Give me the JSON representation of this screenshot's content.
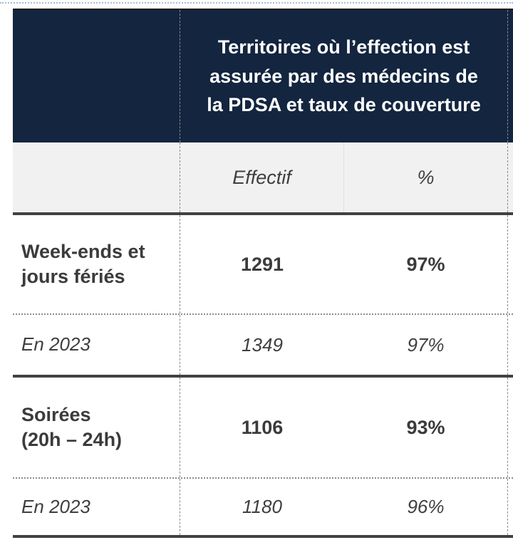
{
  "colors": {
    "header_bg": "#13253f",
    "header_text": "#ffffff",
    "subheader_bg": "#f1f1f1",
    "body_text": "#3d3d3d",
    "heavy_rule": "#414141",
    "dotted_rule": "#8c8c8c",
    "top_page_rule": "#a9bcd6"
  },
  "table": {
    "title": "Territoires où l’effection est\nassurée par des médecins de\nla PDSA et taux de couverture",
    "columns": {
      "effectif": "Effectif",
      "percent": "%"
    },
    "rows": [
      {
        "label": "Week-ends et\njours fériés",
        "effectif": "1291",
        "percent": "97%",
        "emphasis": "bold"
      },
      {
        "label": "En 2023",
        "effectif": "1349",
        "percent": "97%",
        "emphasis": "italic"
      },
      {
        "label": "Soirées\n(20h – 24h)",
        "effectif": "1106",
        "percent": "93%",
        "emphasis": "bold"
      },
      {
        "label": "En 2023",
        "effectif": "1180",
        "percent": "96%",
        "emphasis": "italic"
      }
    ]
  }
}
